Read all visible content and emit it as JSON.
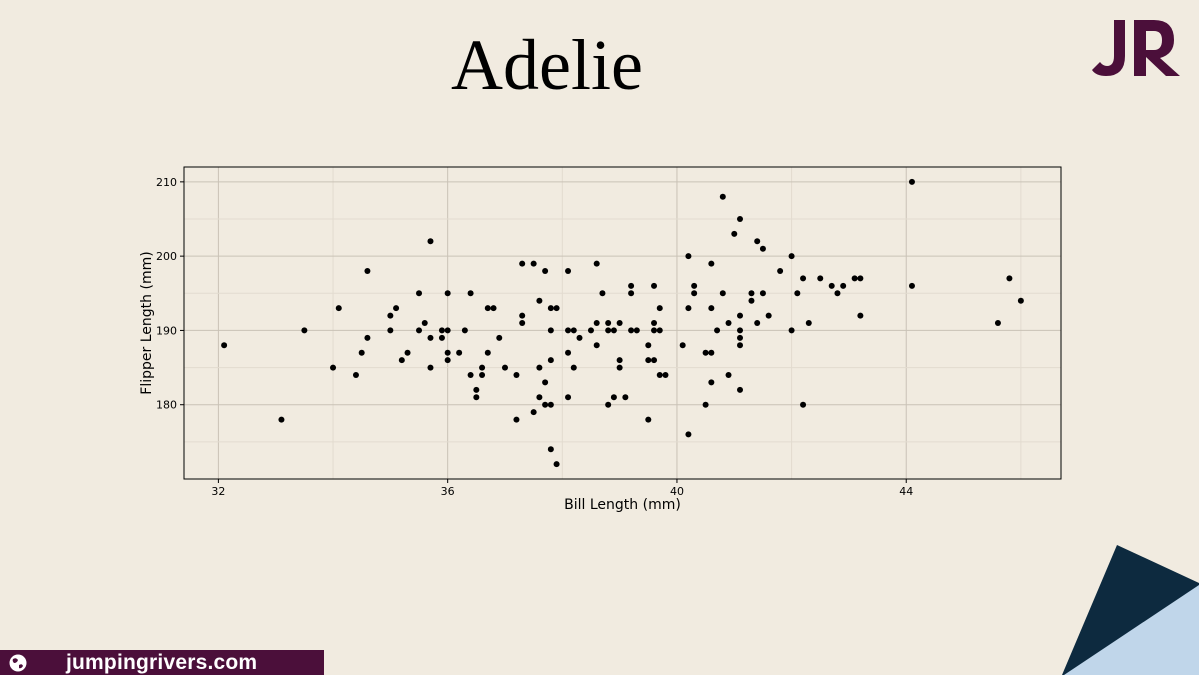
{
  "slide": {
    "title": "Adelie",
    "logo_text": "JR",
    "footer_text": "jumpingrivers.com"
  },
  "colors": {
    "background": "#f1ebe0",
    "logo": "#4b0f3a",
    "footer_bar": "#4b0f3a",
    "corner_dark": "#0d2a3f",
    "corner_light": "#c0d6ea",
    "points": "#000000"
  },
  "icons": {
    "footer_icon": "globe-icon"
  },
  "chart_data": {
    "type": "scatter",
    "title": "",
    "xlabel": "Bill Length (mm)",
    "ylabel": "Flipper Length (mm)",
    "xlim": [
      31.4,
      46.7
    ],
    "ylim": [
      170,
      212
    ],
    "x_ticks": [
      32,
      36,
      40,
      44
    ],
    "y_ticks": [
      180,
      190,
      200,
      210
    ],
    "grid": true,
    "legend": "none",
    "points": [
      [
        32.1,
        188
      ],
      [
        33.1,
        178
      ],
      [
        33.5,
        190
      ],
      [
        34.0,
        185
      ],
      [
        34.1,
        193
      ],
      [
        34.4,
        184
      ],
      [
        34.5,
        187
      ],
      [
        34.6,
        189
      ],
      [
        34.6,
        198
      ],
      [
        35.0,
        190
      ],
      [
        35.0,
        192
      ],
      [
        35.1,
        193
      ],
      [
        35.2,
        186
      ],
      [
        35.3,
        187
      ],
      [
        35.5,
        195
      ],
      [
        35.5,
        190
      ],
      [
        35.6,
        191
      ],
      [
        35.7,
        189
      ],
      [
        35.7,
        185
      ],
      [
        35.7,
        202
      ],
      [
        35.9,
        190
      ],
      [
        35.9,
        189
      ],
      [
        36.0,
        195
      ],
      [
        36.0,
        190
      ],
      [
        36.0,
        187
      ],
      [
        36.0,
        186
      ],
      [
        36.2,
        187
      ],
      [
        36.3,
        190
      ],
      [
        36.4,
        195
      ],
      [
        36.4,
        184
      ],
      [
        36.5,
        182
      ],
      [
        36.5,
        181
      ],
      [
        36.6,
        185
      ],
      [
        36.6,
        184
      ],
      [
        36.7,
        193
      ],
      [
        36.7,
        187
      ],
      [
        36.8,
        193
      ],
      [
        36.9,
        189
      ],
      [
        37.0,
        185
      ],
      [
        37.2,
        184
      ],
      [
        37.2,
        178
      ],
      [
        37.3,
        199
      ],
      [
        37.3,
        192
      ],
      [
        37.3,
        191
      ],
      [
        37.5,
        199
      ],
      [
        37.5,
        179
      ],
      [
        37.6,
        194
      ],
      [
        37.6,
        185
      ],
      [
        37.6,
        181
      ],
      [
        37.7,
        198
      ],
      [
        37.7,
        183
      ],
      [
        37.7,
        180
      ],
      [
        37.8,
        193
      ],
      [
        37.8,
        190
      ],
      [
        37.8,
        186
      ],
      [
        37.8,
        180
      ],
      [
        37.8,
        174
      ],
      [
        37.9,
        193
      ],
      [
        37.9,
        172
      ],
      [
        38.1,
        198
      ],
      [
        38.1,
        190
      ],
      [
        38.1,
        187
      ],
      [
        38.1,
        181
      ],
      [
        38.2,
        190
      ],
      [
        38.2,
        185
      ],
      [
        38.3,
        189
      ],
      [
        38.5,
        190
      ],
      [
        38.6,
        199
      ],
      [
        38.6,
        191
      ],
      [
        38.6,
        188
      ],
      [
        38.7,
        195
      ],
      [
        38.8,
        191
      ],
      [
        38.8,
        190
      ],
      [
        38.8,
        180
      ],
      [
        38.9,
        190
      ],
      [
        38.9,
        181
      ],
      [
        39.0,
        191
      ],
      [
        39.0,
        186
      ],
      [
        39.0,
        185
      ],
      [
        39.1,
        181
      ],
      [
        39.2,
        196
      ],
      [
        39.2,
        195
      ],
      [
        39.2,
        190
      ],
      [
        39.3,
        190
      ],
      [
        39.5,
        188
      ],
      [
        39.5,
        186
      ],
      [
        39.5,
        178
      ],
      [
        39.6,
        196
      ],
      [
        39.6,
        191
      ],
      [
        39.6,
        190
      ],
      [
        39.6,
        186
      ],
      [
        39.7,
        193
      ],
      [
        39.7,
        190
      ],
      [
        39.7,
        184
      ],
      [
        39.8,
        184
      ],
      [
        40.1,
        188
      ],
      [
        40.2,
        200
      ],
      [
        40.2,
        193
      ],
      [
        40.2,
        176
      ],
      [
        40.3,
        196
      ],
      [
        40.3,
        195
      ],
      [
        40.5,
        187
      ],
      [
        40.5,
        180
      ],
      [
        40.6,
        199
      ],
      [
        40.6,
        193
      ],
      [
        40.6,
        187
      ],
      [
        40.6,
        183
      ],
      [
        40.7,
        190
      ],
      [
        40.8,
        208
      ],
      [
        40.8,
        195
      ],
      [
        40.9,
        191
      ],
      [
        40.9,
        184
      ],
      [
        41.0,
        203
      ],
      [
        41.1,
        205
      ],
      [
        41.1,
        192
      ],
      [
        41.1,
        190
      ],
      [
        41.1,
        189
      ],
      [
        41.1,
        188
      ],
      [
        41.1,
        182
      ],
      [
        41.3,
        195
      ],
      [
        41.3,
        194
      ],
      [
        41.4,
        202
      ],
      [
        41.4,
        191
      ],
      [
        41.5,
        201
      ],
      [
        41.5,
        195
      ],
      [
        41.6,
        192
      ],
      [
        41.8,
        198
      ],
      [
        42.0,
        200
      ],
      [
        42.0,
        190
      ],
      [
        42.1,
        195
      ],
      [
        42.2,
        197
      ],
      [
        42.2,
        180
      ],
      [
        42.3,
        191
      ],
      [
        42.5,
        197
      ],
      [
        42.7,
        196
      ],
      [
        42.8,
        195
      ],
      [
        42.9,
        196
      ],
      [
        43.1,
        197
      ],
      [
        43.2,
        197
      ],
      [
        43.2,
        192
      ],
      [
        44.1,
        210
      ],
      [
        44.1,
        196
      ],
      [
        45.6,
        191
      ],
      [
        45.8,
        197
      ],
      [
        46.0,
        194
      ]
    ]
  }
}
